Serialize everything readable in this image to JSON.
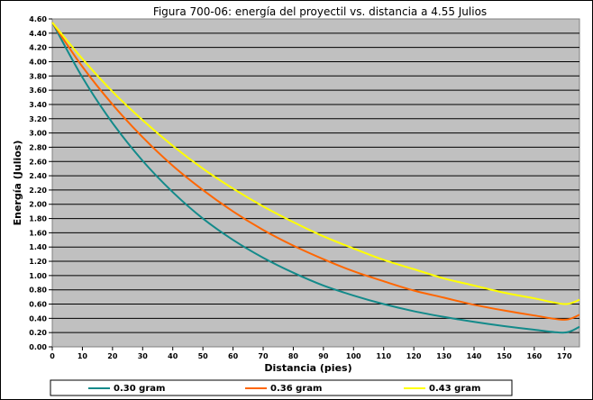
{
  "chart_data": {
    "type": "line",
    "title": "Figura 700-06: energía del proyectil vs. distancia a 4.55 Julios",
    "xlabel": "Distancia (pies)",
    "ylabel": "Energía (Julios)",
    "xlim": [
      0,
      175
    ],
    "ylim": [
      0,
      4.6
    ],
    "x_ticks": [
      0,
      10,
      20,
      30,
      40,
      50,
      60,
      70,
      80,
      90,
      100,
      110,
      120,
      130,
      140,
      150,
      160,
      170
    ],
    "y_ticks": [
      "0.00",
      "0.20",
      "0.40",
      "0.60",
      "0.80",
      "1.00",
      "1.20",
      "1.40",
      "1.60",
      "1.80",
      "2.00",
      "2.20",
      "2.40",
      "2.60",
      "2.80",
      "3.00",
      "3.20",
      "3.40",
      "3.60",
      "3.80",
      "4.00",
      "4.20",
      "4.40",
      "4.60"
    ],
    "grid": "horizontal",
    "legend_position": "bottom",
    "x": [
      0,
      10,
      20,
      30,
      40,
      50,
      60,
      70,
      80,
      90,
      100,
      110,
      120,
      130,
      140,
      150,
      160,
      170,
      175
    ],
    "series": [
      {
        "name": "0.30 gram",
        "color": "#138A8A",
        "values": [
          4.55,
          3.78,
          3.14,
          2.61,
          2.17,
          1.8,
          1.5,
          1.25,
          1.04,
          0.86,
          0.72,
          0.6,
          0.5,
          0.42,
          0.35,
          0.29,
          0.24,
          0.2,
          0.28
        ]
      },
      {
        "name": "0.36 gram",
        "color": "#FF6600",
        "values": [
          4.55,
          3.93,
          3.4,
          2.94,
          2.54,
          2.2,
          1.9,
          1.64,
          1.42,
          1.23,
          1.06,
          0.92,
          0.79,
          0.69,
          0.59,
          0.51,
          0.44,
          0.38,
          0.45
        ]
      },
      {
        "name": "0.43 gram",
        "color": "#FFFF00",
        "values": [
          4.55,
          4.04,
          3.58,
          3.18,
          2.82,
          2.5,
          2.22,
          1.97,
          1.75,
          1.55,
          1.38,
          1.22,
          1.09,
          0.96,
          0.86,
          0.76,
          0.68,
          0.6,
          0.66
        ]
      }
    ]
  }
}
